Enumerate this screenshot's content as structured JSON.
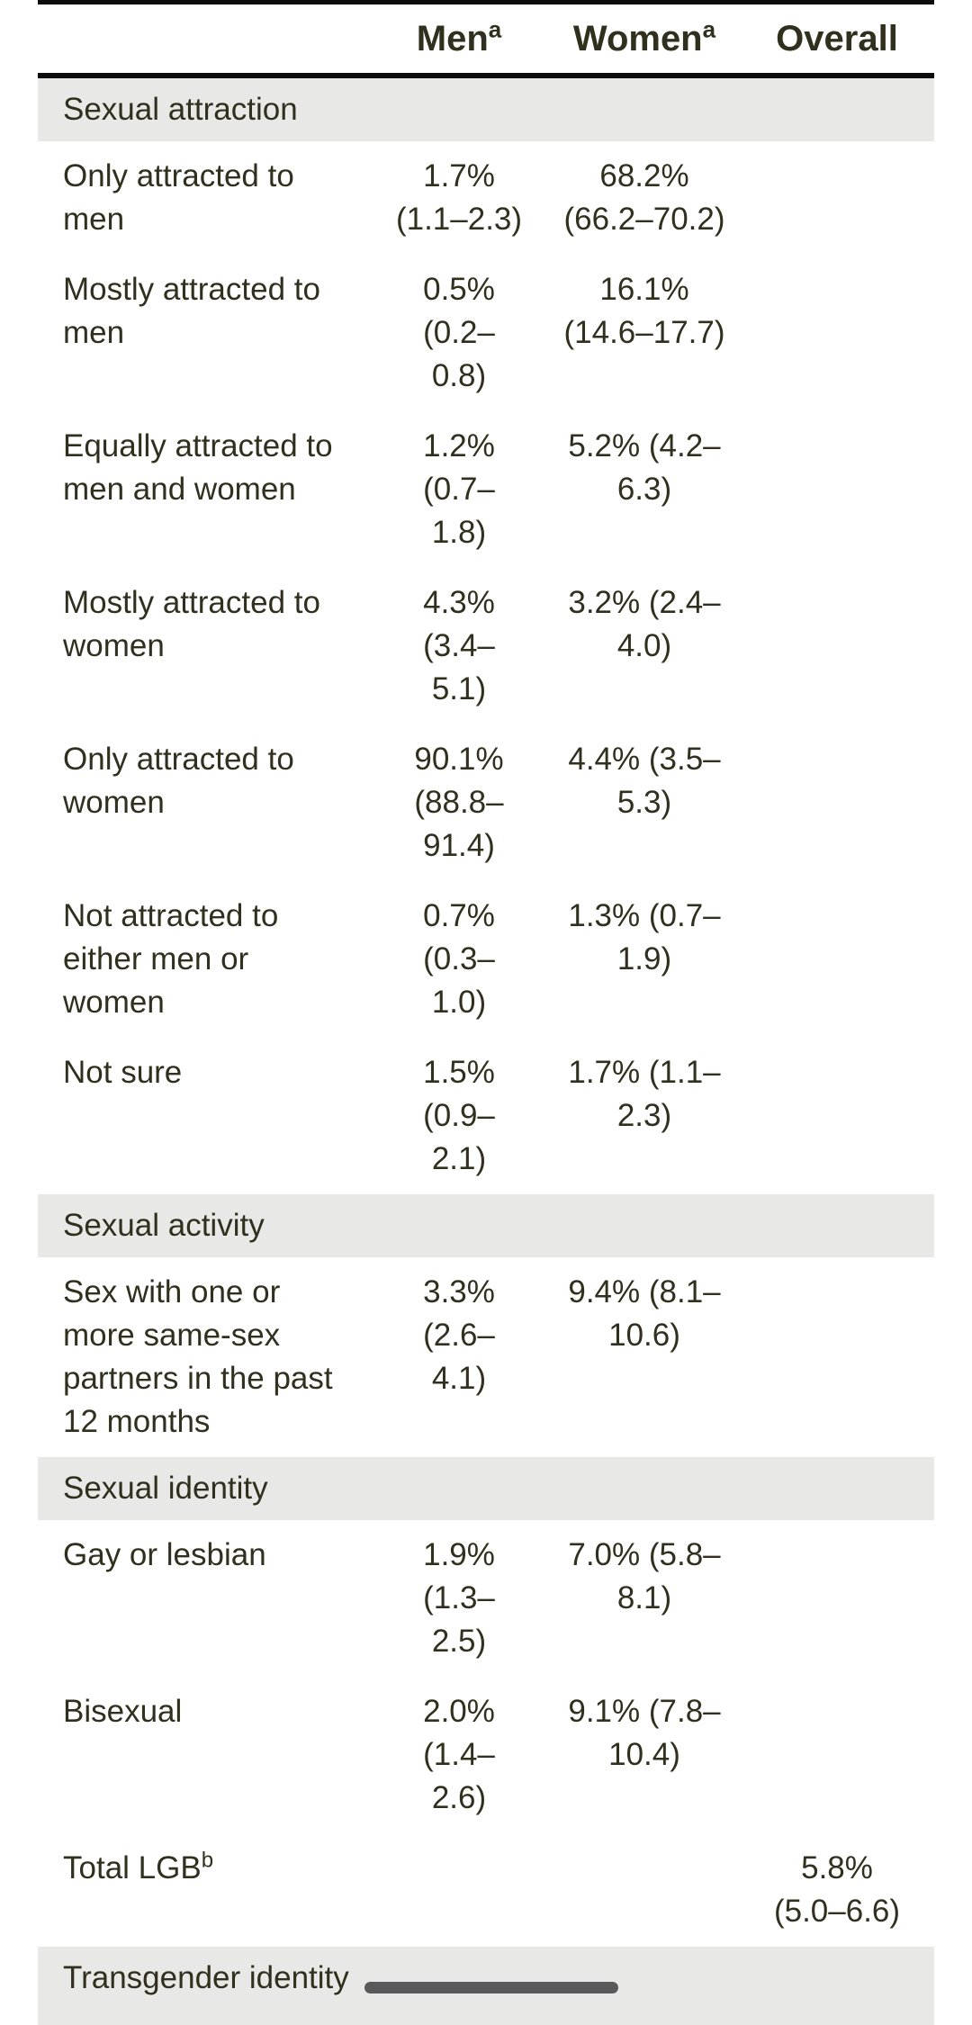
{
  "table": {
    "columns": [
      {
        "label": "Men",
        "sup": "a"
      },
      {
        "label": "Women",
        "sup": "a"
      },
      {
        "label": "Overall",
        "sup": ""
      }
    ],
    "sections": [
      {
        "header": "Sexual attraction",
        "rows": [
          {
            "label": "Only attracted to\nmen",
            "label_sup": "",
            "men": "1.7%\n(1.1–2.3)",
            "women": "68.2%\n(66.2–70.2)",
            "overall": ""
          },
          {
            "label": "Mostly attracted to\nmen",
            "label_sup": "",
            "men": "0.5%\n(0.2–\n0.8)",
            "women": "16.1%\n(14.6–17.7)",
            "overall": ""
          },
          {
            "label": "Equally attracted to\nmen and women",
            "label_sup": "",
            "men": "1.2%\n(0.7–\n1.8)",
            "women": "5.2% (4.2–\n6.3)",
            "overall": ""
          },
          {
            "label": "Mostly attracted to\nwomen",
            "label_sup": "",
            "men": "4.3%\n(3.4–\n5.1)",
            "women": "3.2% (2.4–\n4.0)",
            "overall": ""
          },
          {
            "label": "Only attracted to\nwomen",
            "label_sup": "",
            "men": "90.1%\n(88.8–\n91.4)",
            "women": "4.4% (3.5–\n5.3)",
            "overall": ""
          },
          {
            "label": "Not attracted to\neither men or\nwomen",
            "label_sup": "",
            "men": "0.7%\n(0.3–\n1.0)",
            "women": "1.3% (0.7–\n1.9)",
            "overall": ""
          },
          {
            "label": "Not sure",
            "label_sup": "",
            "men": "1.5%\n(0.9–\n2.1)",
            "women": "1.7% (1.1–\n2.3)",
            "overall": ""
          }
        ]
      },
      {
        "header": "Sexual activity",
        "rows": [
          {
            "label": "Sex with one or\nmore same-sex\npartners in the past\n12 months",
            "label_sup": "",
            "men": "3.3%\n(2.6–\n4.1)",
            "women": "9.4% (8.1–\n10.6)",
            "overall": ""
          }
        ]
      },
      {
        "header": "Sexual identity",
        "rows": [
          {
            "label": "Gay or lesbian",
            "label_sup": "",
            "men": "1.9%\n(1.3–\n2.5)",
            "women": "7.0% (5.8–\n8.1)",
            "overall": ""
          },
          {
            "label": "Bisexual",
            "label_sup": "",
            "men": "2.0%\n(1.4–\n2.6)",
            "women": "9.1% (7.8–\n10.4)",
            "overall": ""
          },
          {
            "label": "Total LGB",
            "label_sup": "b",
            "men": "",
            "women": "",
            "overall": "5.8%\n(5.0–6.6)"
          }
        ]
      },
      {
        "header": "Transgender identity",
        "rows": []
      }
    ]
  },
  "colors": {
    "text": "#31301e",
    "section_band": "#e8e8e6",
    "border": "#0d0d0d",
    "scrollbar_thumb": "#59595b",
    "background": "#ffffff"
  }
}
